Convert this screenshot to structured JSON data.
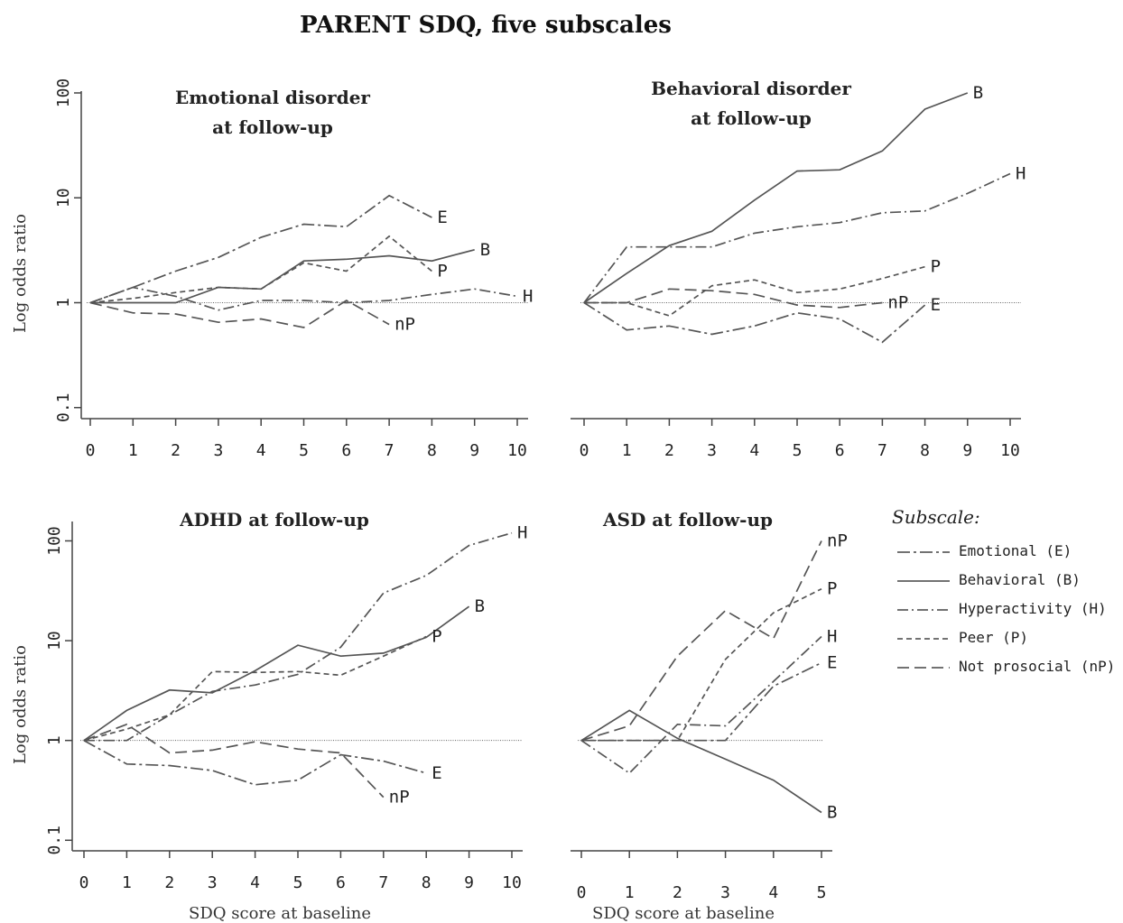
{
  "figure": {
    "title": "PARENT SDQ, five subscales"
  },
  "legend": {
    "title": "Subscale:",
    "items": [
      {
        "key": "E",
        "label": "Emotional (E)",
        "dash": "14 4 3 4"
      },
      {
        "key": "B",
        "label": "Behavioral (B)",
        "dash": ""
      },
      {
        "key": "H",
        "label": "Hyperactivity (H)",
        "dash": "12 4 2 4"
      },
      {
        "key": "P",
        "label": "Peer (P)",
        "dash": "6 4"
      },
      {
        "key": "nP",
        "label": "Not prosocial (nP)",
        "dash": "13 6"
      }
    ]
  },
  "chart_data": [
    {
      "type": "line",
      "title": "Emotional disorder at follow-up",
      "title_lines": [
        "Emotional  disorder",
        "at follow-up"
      ],
      "xlabel": "",
      "ylabel": "Log odds ratio",
      "yscale": "log",
      "ylim": [
        0.08,
        100
      ],
      "xlim": [
        0,
        10
      ],
      "xticks": [
        0,
        1,
        2,
        3,
        4,
        5,
        6,
        7,
        8,
        9,
        10
      ],
      "yticks": [
        0.1,
        1,
        10,
        100
      ],
      "ytick_labels": [
        "0.1",
        "1",
        "10",
        "100"
      ],
      "reference_line": 1,
      "series": [
        {
          "key": "E",
          "label": "E",
          "x": [
            0,
            1,
            2,
            3,
            4,
            5,
            6,
            7,
            8
          ],
          "y": [
            1,
            1.4,
            2.0,
            2.7,
            4.2,
            5.6,
            5.3,
            10.5,
            6.5
          ]
        },
        {
          "key": "B",
          "label": "B",
          "x": [
            0,
            1,
            2,
            3,
            4,
            5,
            6,
            7,
            8,
            9
          ],
          "y": [
            1,
            1.0,
            1.0,
            1.4,
            1.35,
            2.5,
            2.6,
            2.8,
            2.5,
            3.2
          ]
        },
        {
          "key": "H",
          "label": "H",
          "x": [
            0,
            1,
            2,
            3,
            4,
            5,
            6,
            7,
            8,
            9,
            10
          ],
          "y": [
            1,
            1.4,
            1.15,
            0.85,
            1.05,
            1.05,
            1.0,
            1.05,
            1.2,
            1.35,
            1.15
          ]
        },
        {
          "key": "P",
          "label": "P",
          "x": [
            0,
            1,
            2,
            3,
            4,
            5,
            6,
            7,
            8
          ],
          "y": [
            1,
            1.1,
            1.25,
            1.4,
            1.35,
            2.4,
            2.0,
            4.3,
            2.0
          ]
        },
        {
          "key": "nP",
          "label": "nP",
          "x": [
            0,
            1,
            2,
            3,
            4,
            5,
            6,
            7
          ],
          "y": [
            1,
            0.8,
            0.78,
            0.65,
            0.7,
            0.58,
            1.05,
            0.62
          ]
        }
      ]
    },
    {
      "type": "line",
      "title": "Behavioral disorder at follow-up",
      "title_lines": [
        "Behavioral disorder",
        "at follow-up"
      ],
      "xlabel": "",
      "ylabel": "",
      "yscale": "log",
      "ylim": [
        0.08,
        100
      ],
      "xlim": [
        0,
        10
      ],
      "xticks": [
        0,
        1,
        2,
        3,
        4,
        5,
        6,
        7,
        8,
        9,
        10
      ],
      "yticks": [],
      "ytick_labels": [],
      "reference_line": 1,
      "series": [
        {
          "key": "B",
          "label": "B",
          "x": [
            0,
            1,
            2,
            3,
            4,
            5,
            6,
            7,
            8,
            9
          ],
          "y": [
            1,
            1.9,
            3.5,
            4.8,
            9.5,
            18,
            18.5,
            28,
            70,
            100
          ]
        },
        {
          "key": "H",
          "label": "H",
          "x": [
            0,
            1,
            2,
            3,
            4,
            5,
            6,
            7,
            8,
            9,
            10
          ],
          "y": [
            1,
            3.4,
            3.4,
            3.4,
            4.6,
            5.3,
            5.8,
            7.2,
            7.5,
            11,
            17
          ]
        },
        {
          "key": "P",
          "label": "P",
          "x": [
            0,
            1,
            2,
            3,
            4,
            5,
            6,
            7,
            8
          ],
          "y": [
            1,
            1.0,
            0.75,
            1.45,
            1.65,
            1.25,
            1.35,
            1.7,
            2.2
          ]
        },
        {
          "key": "nP",
          "label": "nP",
          "x": [
            0,
            1,
            2,
            3,
            4,
            5,
            6,
            7
          ],
          "y": [
            1,
            1.0,
            1.35,
            1.3,
            1.2,
            0.95,
            0.9,
            1.0
          ]
        },
        {
          "key": "E",
          "label": "E",
          "x": [
            0,
            1,
            2,
            3,
            4,
            5,
            6,
            7,
            8
          ],
          "y": [
            1,
            0.55,
            0.6,
            0.5,
            0.6,
            0.8,
            0.7,
            0.42,
            0.95
          ]
        }
      ]
    },
    {
      "type": "line",
      "title": "ADHD at follow-up",
      "title_lines": [
        "ADHD at follow-up"
      ],
      "xlabel": "SDQ score at baseline",
      "ylabel": "Log odds ratio",
      "yscale": "log",
      "ylim": [
        0.08,
        150
      ],
      "xlim": [
        0,
        10
      ],
      "xticks": [
        0,
        1,
        2,
        3,
        4,
        5,
        6,
        7,
        8,
        9,
        10
      ],
      "yticks": [
        0.1,
        1,
        10,
        100
      ],
      "ytick_labels": [
        "0.1",
        "1",
        "10",
        "100"
      ],
      "reference_line": 1,
      "series": [
        {
          "key": "H",
          "label": "H",
          "x": [
            0,
            1,
            2,
            3,
            4,
            5,
            6,
            7,
            8,
            9,
            10
          ],
          "y": [
            1,
            1.0,
            1.8,
            3.1,
            3.6,
            4.6,
            8.6,
            30,
            45,
            90,
            120
          ]
        },
        {
          "key": "B",
          "label": "B",
          "x": [
            0,
            1,
            2,
            3,
            4,
            5,
            6,
            7,
            8,
            9
          ],
          "y": [
            1,
            2.0,
            3.2,
            3.0,
            5.0,
            9.0,
            7.0,
            7.5,
            10.8,
            22
          ]
        },
        {
          "key": "P",
          "label": "P",
          "x": [
            0,
            1,
            2,
            3,
            4,
            5,
            6,
            7,
            8
          ],
          "y": [
            1,
            1.3,
            1.8,
            4.9,
            4.8,
            4.9,
            4.5,
            7.0,
            11
          ]
        },
        {
          "key": "E",
          "label": "E",
          "x": [
            0,
            1,
            2,
            3,
            4,
            5,
            6,
            7,
            8
          ],
          "y": [
            1,
            0.58,
            0.56,
            0.5,
            0.36,
            0.4,
            0.72,
            0.62,
            0.47
          ]
        },
        {
          "key": "nP",
          "label": "nP",
          "x": [
            0,
            1,
            2,
            3,
            4,
            5,
            6,
            7
          ],
          "y": [
            1,
            1.45,
            0.75,
            0.8,
            0.97,
            0.82,
            0.75,
            0.27
          ]
        }
      ]
    },
    {
      "type": "line",
      "title": "ASD at follow-up",
      "title_lines": [
        "ASD at follow-up"
      ],
      "xlabel": "SDQ score at baseline",
      "ylabel": "",
      "yscale": "log",
      "ylim": [
        0.08,
        150
      ],
      "xlim": [
        0,
        5
      ],
      "xticks": [
        0,
        1,
        2,
        3,
        4,
        5
      ],
      "yticks": [],
      "ytick_labels": [],
      "reference_line": 1,
      "series": [
        {
          "key": "nP",
          "label": "nP",
          "x": [
            0,
            1,
            2,
            3,
            4,
            5
          ],
          "y": [
            1,
            1.4,
            7.0,
            20,
            10.5,
            100
          ]
        },
        {
          "key": "P",
          "label": "P",
          "x": [
            0,
            1,
            2,
            3,
            4,
            5
          ],
          "y": [
            1,
            1.0,
            1.0,
            6.5,
            19,
            33
          ]
        },
        {
          "key": "H",
          "label": "H",
          "x": [
            0,
            1,
            2,
            3,
            4,
            5
          ],
          "y": [
            1,
            0.47,
            1.45,
            1.4,
            3.9,
            11
          ]
        },
        {
          "key": "E",
          "label": "E",
          "x": [
            0,
            1,
            2,
            3,
            4,
            5
          ],
          "y": [
            1,
            1.0,
            1.0,
            1.0,
            3.5,
            6.0
          ]
        },
        {
          "key": "B",
          "label": "B",
          "x": [
            0,
            1,
            2,
            3,
            4,
            5
          ],
          "y": [
            1,
            2.0,
            1.05,
            0.65,
            0.4,
            0.19
          ]
        }
      ]
    }
  ]
}
